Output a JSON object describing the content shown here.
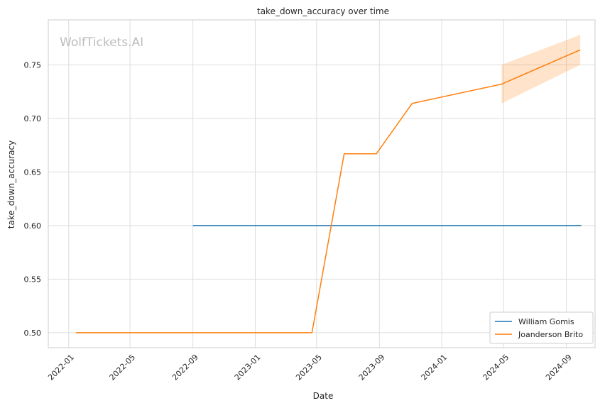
{
  "chart_data": {
    "type": "line",
    "title": "take_down_accuracy over time",
    "xlabel": "Date",
    "ylabel": "take_down_accuracy",
    "watermark": "WolfTickets.AI",
    "x_ticks": [
      "2022-01",
      "2022-05",
      "2022-09",
      "2023-01",
      "2023-05",
      "2023-09",
      "2024-01",
      "2024-05",
      "2024-09"
    ],
    "y_ticks": [
      "0.50",
      "0.55",
      "0.60",
      "0.65",
      "0.70",
      "0.75"
    ],
    "xlim": [
      "2021-11-22",
      "2024-10-27"
    ],
    "ylim": [
      0.486,
      0.792
    ],
    "grid": true,
    "legend_position": "bottom-right",
    "series": [
      {
        "name": "William Gomis",
        "color": "#1f77b4",
        "points": [
          {
            "x": "2022-09-01",
            "y": 0.6
          },
          {
            "x": "2024-09-30",
            "y": 0.6
          }
        ]
      },
      {
        "name": "Joanderson Brito",
        "color": "#ff7f0e",
        "points": [
          {
            "x": "2022-01-15",
            "y": 0.5
          },
          {
            "x": "2023-04-22",
            "y": 0.5
          },
          {
            "x": "2023-06-24",
            "y": 0.667
          },
          {
            "x": "2023-08-26",
            "y": 0.667
          },
          {
            "x": "2023-11-04",
            "y": 0.714
          },
          {
            "x": "2024-04-27",
            "y": 0.732
          },
          {
            "x": "2024-09-28",
            "y": 0.764
          }
        ],
        "band": [
          {
            "x": "2024-04-27",
            "low": 0.714,
            "high": 0.75
          },
          {
            "x": "2024-09-28",
            "low": 0.75,
            "high": 0.778
          }
        ]
      }
    ]
  }
}
